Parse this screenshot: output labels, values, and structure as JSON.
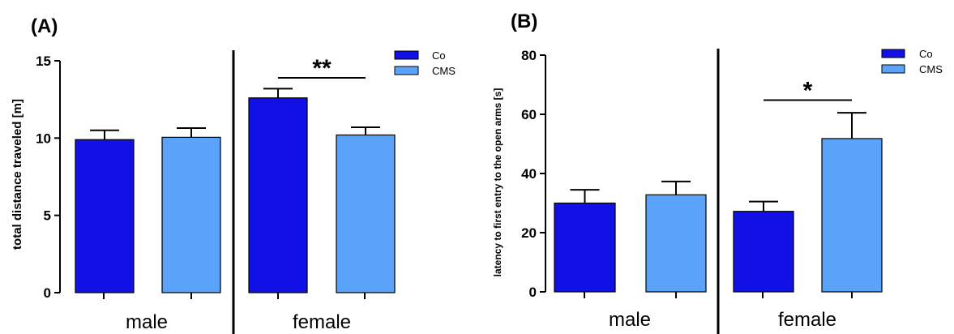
{
  "colors": {
    "co": "#1111e6",
    "cms": "#5aa3f8"
  },
  "chart_data": [
    {
      "type": "bar",
      "panel_label": "(A)",
      "ylabel": "total distance traveled [m]",
      "ylim": [
        0,
        15
      ],
      "yticks": [
        0,
        5,
        10,
        15
      ],
      "categories": [
        "male",
        "female"
      ],
      "series": [
        {
          "name": "Co",
          "values": [
            9.9,
            12.6
          ],
          "errors": [
            0.6,
            0.6
          ]
        },
        {
          "name": "CMS",
          "values": [
            10.05,
            10.2
          ],
          "errors": [
            0.6,
            0.5
          ]
        }
      ],
      "significance": [
        {
          "category_index": 1,
          "text": "**",
          "y": 13.9
        }
      ],
      "legend": "top-right",
      "grid": false
    },
    {
      "type": "bar",
      "panel_label": "(B)",
      "ylabel": "latency to first entry to the open arms [s]",
      "ylim": [
        0,
        80
      ],
      "yticks": [
        0,
        20,
        40,
        60,
        80
      ],
      "categories": [
        "male",
        "female"
      ],
      "series": [
        {
          "name": "Co",
          "values": [
            30,
            27.2
          ],
          "errors": [
            4.5,
            3.3
          ]
        },
        {
          "name": "CMS",
          "values": [
            32.8,
            51.8
          ],
          "errors": [
            4.5,
            8.7
          ]
        }
      ],
      "significance": [
        {
          "category_index": 1,
          "text": "*",
          "y": 64.8
        }
      ],
      "legend": "top-right",
      "grid": false
    }
  ]
}
